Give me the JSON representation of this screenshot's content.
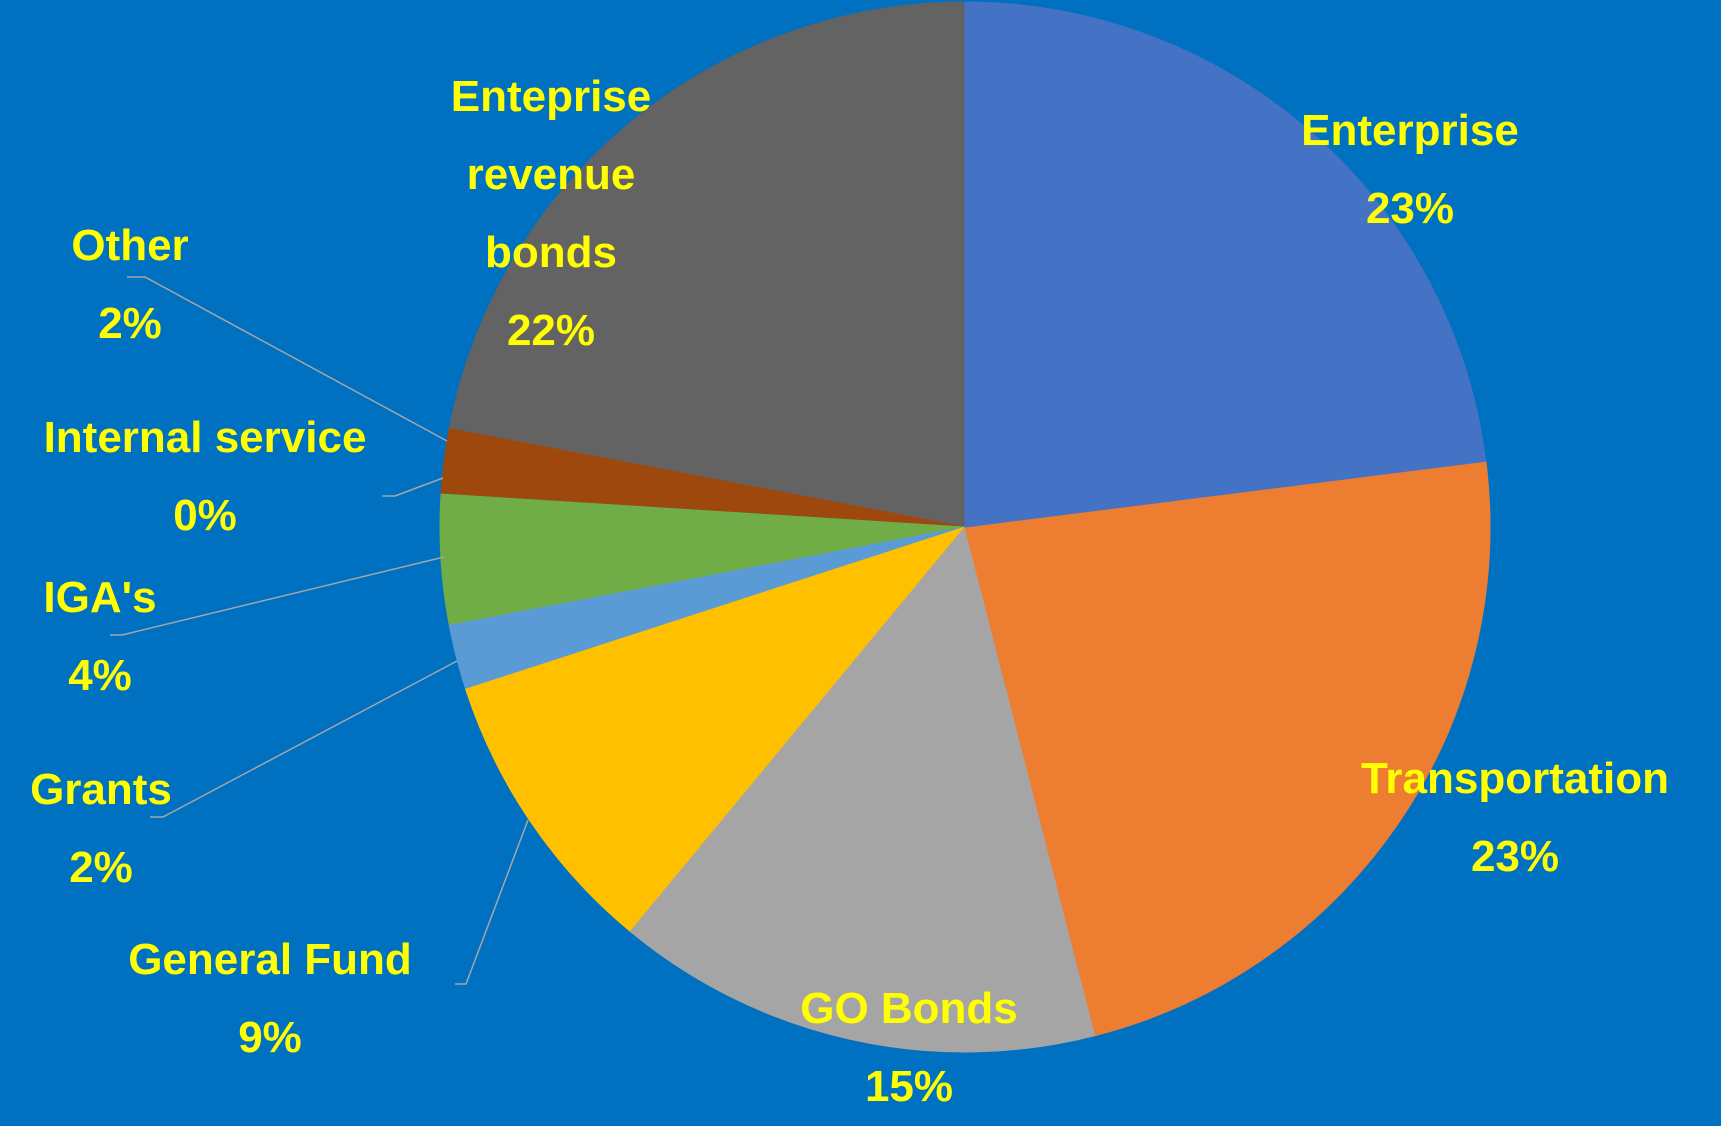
{
  "chart_data": {
    "type": "pie",
    "categories": [
      "Enterprise",
      "Transportation",
      "GO Bonds",
      "General Fund",
      "Grants",
      "IGA's",
      "Internal service",
      "Other",
      "Enteprise revenue bonds"
    ],
    "values": [
      23,
      23,
      15,
      9,
      2,
      4,
      0,
      2,
      22
    ],
    "value_labels": [
      "23%",
      "23%",
      "15%",
      "9%",
      "2%",
      "4%",
      "0%",
      "2%",
      "22%"
    ],
    "colors": [
      "#4472c4",
      "#ed7d31",
      "#a5a5a5",
      "#ffc000",
      "#5b9bd5",
      "#70ad47",
      "#264478",
      "#9e480e",
      "#636363"
    ]
  }
}
